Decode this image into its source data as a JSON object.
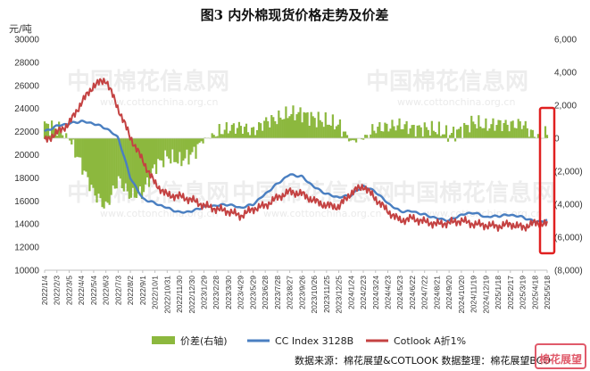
{
  "chart_data": {
    "type": "line",
    "title": "图3 内外棉现货价格走势及价差",
    "ylabel_left": "元/吨",
    "ylim_left": [
      10000,
      30000
    ],
    "yticks_left": [
      "10000",
      "12000",
      "14000",
      "16000",
      "18000",
      "20000",
      "22000",
      "24000",
      "26000",
      "28000",
      "30000"
    ],
    "ylim_right": [
      -8000,
      6000
    ],
    "yticks_right": [
      "(8,000)",
      "(6,000)",
      "(4,000)",
      "(2,000)",
      "0",
      "2,000",
      "4,000",
      "6,000"
    ],
    "x_labels": [
      "2022/1/4",
      "2022/2/3",
      "2022/3/5",
      "2022/4/4",
      "2022/5/4",
      "2022/6/3",
      "2022/7/3",
      "2022/8/2",
      "2022/9/1",
      "2022/10/1",
      "2022/10/31",
      "2022/11/30",
      "2022/12/30",
      "2023/1/29",
      "2023/2/28",
      "2023/3/30",
      "2023/4/29",
      "2023/5/29",
      "2023/6/28",
      "2023/7/28",
      "2023/8/27",
      "2023/9/26",
      "2023/10/26",
      "2023/11/25",
      "2023/12/25",
      "2024/1/24",
      "2024/2/23",
      "2024/3/24",
      "2024/4/23",
      "2024/5/23",
      "2024/6/22",
      "2024/7/22",
      "2024/8/21",
      "2024/9/20",
      "2024/10/20",
      "2024/11/19",
      "2024/12/19",
      "2025/1/18",
      "2025/2/17",
      "2025/3/19",
      "2025/4/18",
      "2025/5/18"
    ],
    "series": [
      {
        "name": "CC Index 3128B",
        "axis": "left",
        "color": "#4a7fc1",
        "values": [
          22000,
          22500,
          22700,
          22900,
          22700,
          22300,
          21500,
          18000,
          16200,
          15800,
          15400,
          15000,
          15100,
          15500,
          15600,
          15700,
          15400,
          15700,
          16600,
          17500,
          18300,
          18100,
          17200,
          16600,
          16300,
          16500,
          17300,
          16800,
          15800,
          15100,
          15100,
          14800,
          14500,
          14300,
          14800,
          15000,
          14600,
          14700,
          14800,
          14600,
          14200,
          14300
        ]
      },
      {
        "name": "Cotlook A折1%",
        "axis": "left",
        "color": "#c44242",
        "values": [
          21200,
          21900,
          22700,
          24500,
          26000,
          26500,
          24000,
          21500,
          19500,
          17500,
          16500,
          16400,
          16100,
          15600,
          15300,
          15100,
          14700,
          15300,
          15600,
          16300,
          16800,
          16600,
          16000,
          15600,
          15500,
          16700,
          17300,
          16200,
          15100,
          14300,
          14500,
          14200,
          14000,
          14100,
          14300,
          14000,
          13900,
          13800,
          14000,
          13700,
          14100,
          14000
        ]
      },
      {
        "name": "价差(右轴)",
        "axis": "right",
        "color": "#8cb83e",
        "values": [
          800,
          600,
          0,
          -1600,
          -3300,
          -4200,
          -2500,
          -3500,
          -3300,
          -1700,
          -1100,
          -1400,
          -1000,
          -100,
          300,
          600,
          700,
          400,
          1000,
          1200,
          1500,
          1500,
          1200,
          1000,
          800,
          -200,
          0,
          600,
          700,
          800,
          600,
          600,
          500,
          200,
          500,
          1000,
          700,
          900,
          800,
          900,
          100,
          300
        ]
      }
    ],
    "legend_position": "bottom"
  },
  "source_text": "数据来源：棉花展望&COTLOOK 数据整理：棉花展望BCO",
  "watermark": {
    "main": "中国棉花信息网",
    "sub": "www.cottonchina.org.cn"
  },
  "stamp_text": "棉花展望",
  "highlight_color": "#e02020"
}
